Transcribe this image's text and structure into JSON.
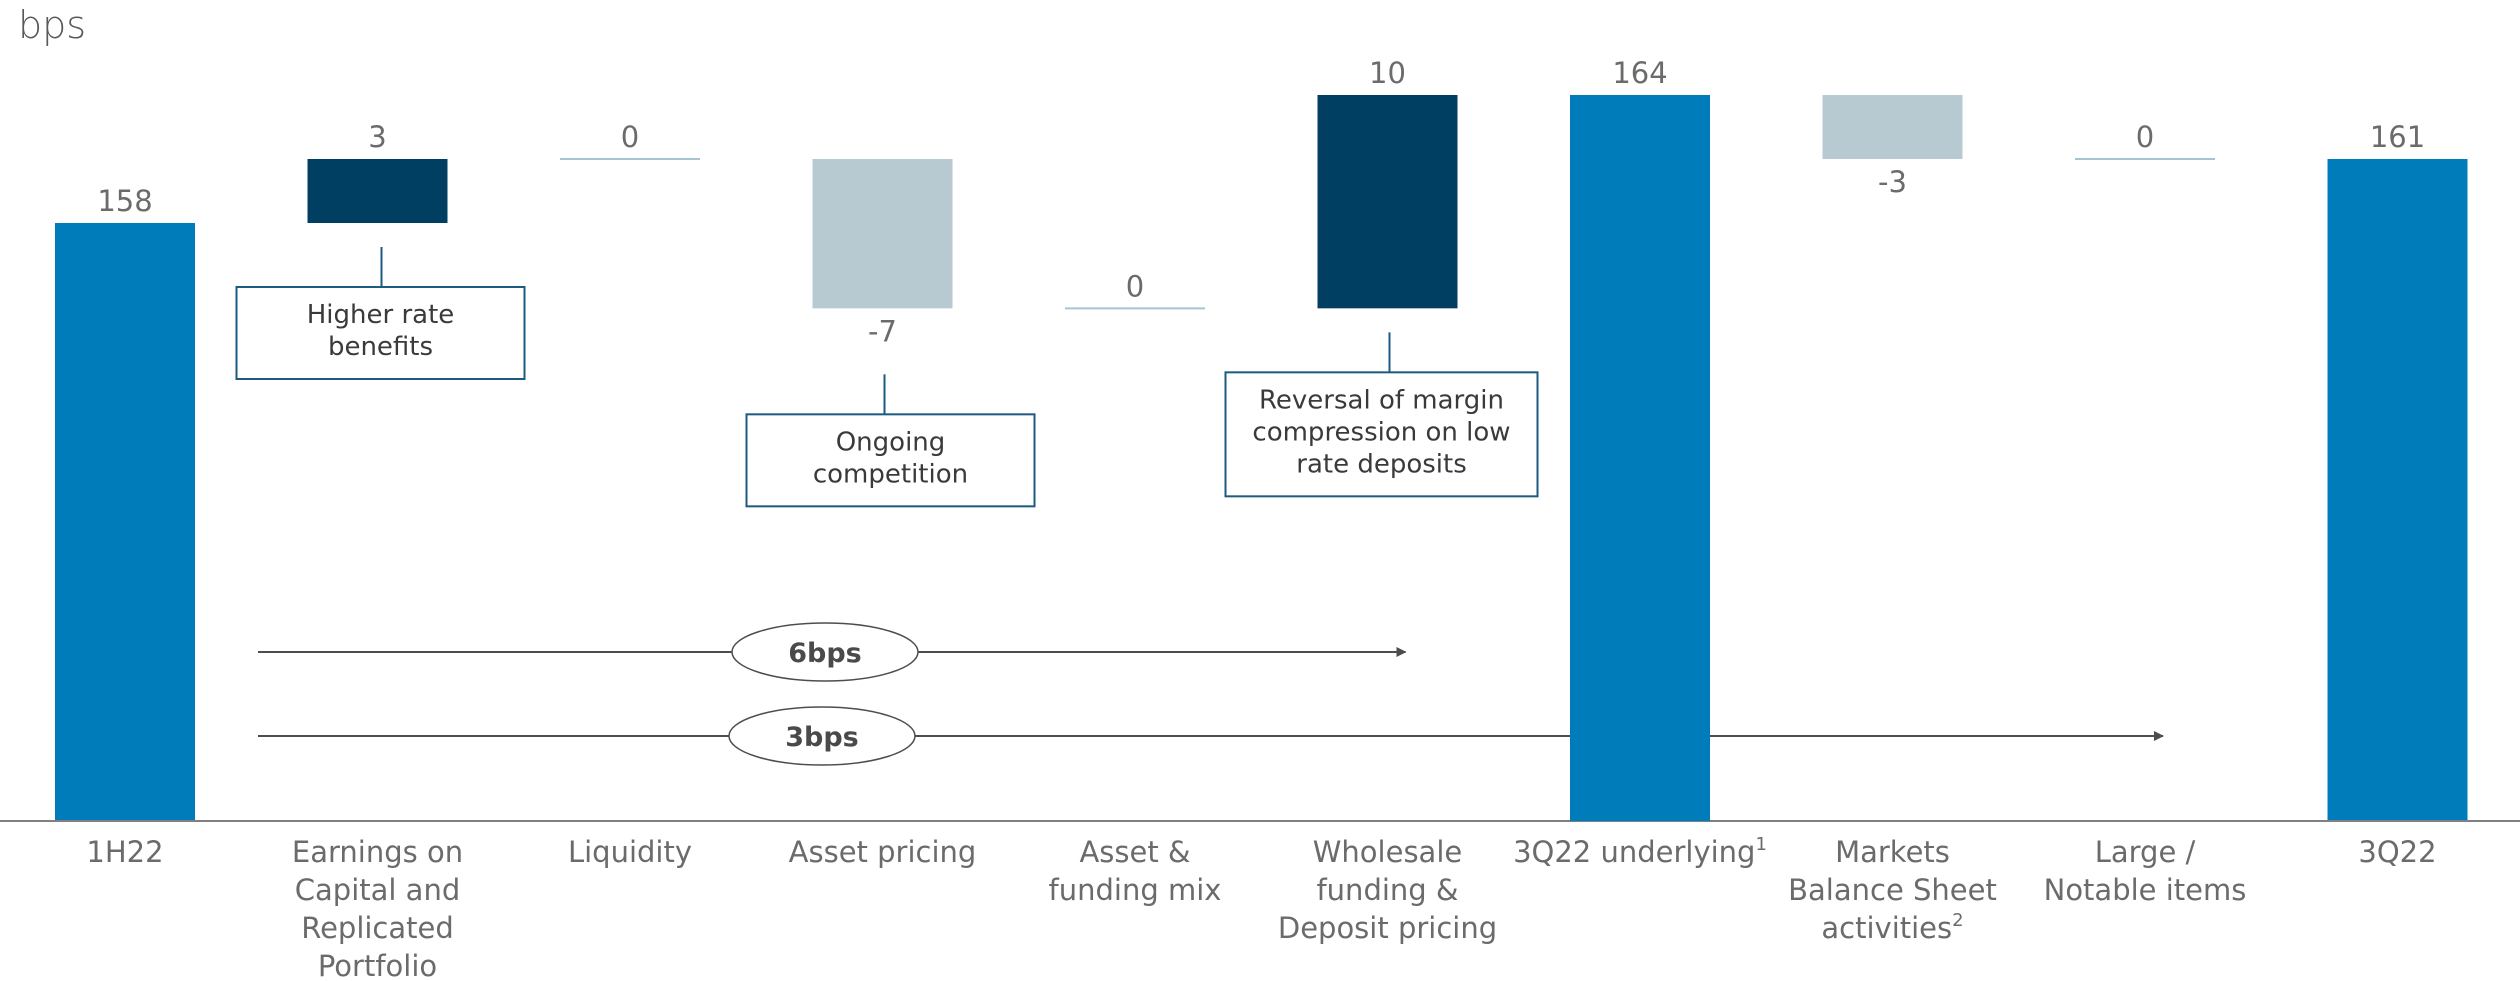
{
  "colors": {
    "total": "#007cba",
    "increase": "#003e62",
    "decrease": "#b7c9d1",
    "zero_line": "#a7c4d2",
    "axis": "#7f7f7f",
    "text": "#6b6b6b",
    "callout_border": "#1d5a80",
    "arrow": "#4d4d4d"
  },
  "chart_data": {
    "type": "bar",
    "subtype": "waterfall",
    "unit_label": "bps",
    "categories": [
      {
        "label": "1H22",
        "sup": ""
      },
      {
        "label": "Earnings on Capital and Replicated Portfolio",
        "sup": ""
      },
      {
        "label": "Liquidity",
        "sup": ""
      },
      {
        "label": "Asset pricing",
        "sup": ""
      },
      {
        "label": "Asset & funding mix",
        "sup": ""
      },
      {
        "label": "Wholesale funding & Deposit pricing",
        "sup": ""
      },
      {
        "label": "3Q22 underlying",
        "sup": "1"
      },
      {
        "label": "Markets Balance Sheet activities",
        "sup": "2"
      },
      {
        "label": "Large / Notable items",
        "sup": ""
      },
      {
        "label": "3Q22",
        "sup": ""
      }
    ],
    "category_lines": [
      [
        "1H22"
      ],
      [
        "Earnings on",
        "Capital and",
        "Replicated",
        "Portfolio"
      ],
      [
        "Liquidity"
      ],
      [
        "Asset pricing"
      ],
      [
        "Asset &",
        "funding mix"
      ],
      [
        "Wholesale",
        "funding &",
        "Deposit pricing"
      ],
      [
        "3Q22 underlying"
      ],
      [
        "Markets",
        "Balance Sheet",
        "activities"
      ],
      [
        "Large /",
        "Notable items"
      ],
      [
        "3Q22"
      ]
    ],
    "bar_kinds": [
      "total",
      "delta",
      "delta",
      "delta",
      "delta",
      "delta",
      "total",
      "delta",
      "delta",
      "total"
    ],
    "values": [
      158,
      3,
      0,
      -7,
      0,
      10,
      164,
      -3,
      0,
      161
    ],
    "value_labels": [
      "158",
      "3",
      "0",
      "-7",
      "0",
      "10",
      "164",
      "-3",
      "0",
      "161"
    ],
    "axis_break": true,
    "annotations": [
      {
        "category_index": 1,
        "lines": [
          "Higher rate",
          "benefits"
        ]
      },
      {
        "category_index": 3,
        "lines": [
          "Ongoing",
          "competition"
        ]
      },
      {
        "category_index": 5,
        "lines": [
          "Reversal of margin",
          "compression on low",
          "rate deposits"
        ]
      }
    ],
    "bridge_arrows": [
      {
        "label": "6bps",
        "from_category": 1,
        "to_category": 5
      },
      {
        "label": "3bps",
        "from_category": 1,
        "to_category": 8
      }
    ]
  }
}
